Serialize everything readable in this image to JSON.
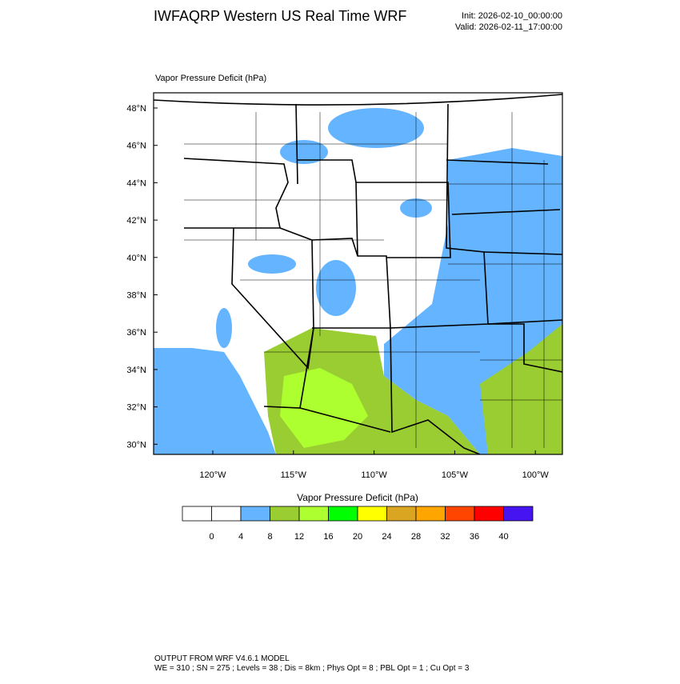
{
  "header": {
    "title": "IWFAQRP Western US Real Time WRF",
    "init": "Init: 2026-02-10_00:00:00",
    "valid": "Valid: 2026-02-11_17:00:00"
  },
  "map": {
    "label": "Vapor Pressure Deficit   (hPa)",
    "lat_labels": [
      "48°N",
      "46°N",
      "44°N",
      "42°N",
      "40°N",
      "38°N",
      "36°N",
      "34°N",
      "32°N",
      "30°N"
    ],
    "lon_labels": [
      "120°W",
      "115°W",
      "110°W",
      "105°W",
      "100°W"
    ]
  },
  "colorbar": {
    "title": "Vapor Pressure Deficit  (hPa)",
    "colors": [
      "#ffffff",
      "#ffffff",
      "#64b4ff",
      "#9acd32",
      "#adff2f",
      "#00ff00",
      "#ffff00",
      "#daa520",
      "#ffa500",
      "#ff4500",
      "#ff0000",
      "#4614f0"
    ],
    "labels": [
      "0",
      "4",
      "8",
      "12",
      "16",
      "20",
      "24",
      "28",
      "32",
      "36",
      "40"
    ]
  },
  "footer": {
    "line1": "OUTPUT FROM WRF V4.6.1 MODEL",
    "line2": "WE = 310 ; SN = 275 ; Levels = 38 ; Dis = 8km ; Phys Opt = 8 ; PBL Opt = 1 ; Cu Opt = 3"
  }
}
